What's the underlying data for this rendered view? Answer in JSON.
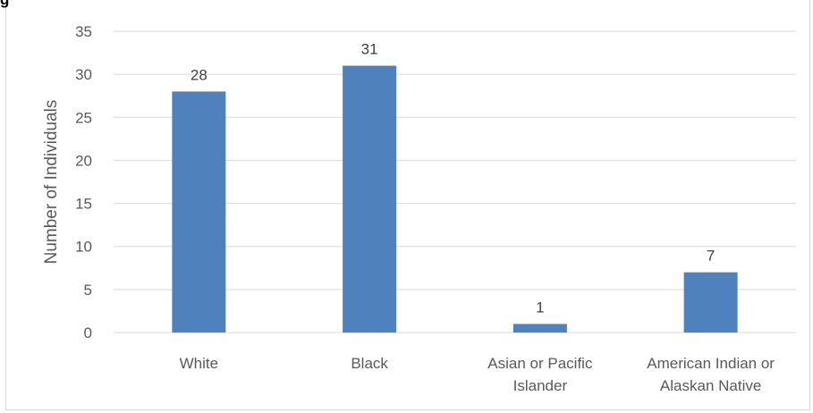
{
  "heading_fragment": "g",
  "chart_data": {
    "type": "bar",
    "categories": [
      [
        "White"
      ],
      [
        "Black"
      ],
      [
        "Asian or Pacific",
        "Islander"
      ],
      [
        "American Indian or",
        "Alaskan Native"
      ]
    ],
    "values": [
      28,
      31,
      1,
      7
    ],
    "data_labels": [
      "28",
      "31",
      "1",
      "7"
    ],
    "ylabel": "Number of Individuals",
    "xlabel": "",
    "ylim": [
      0,
      35
    ],
    "yticks": [
      0,
      5,
      10,
      15,
      20,
      25,
      30,
      35
    ],
    "grid": true,
    "legend": "none",
    "bar_color": "#4f81bd",
    "grid_color": "#d9d9d9"
  }
}
